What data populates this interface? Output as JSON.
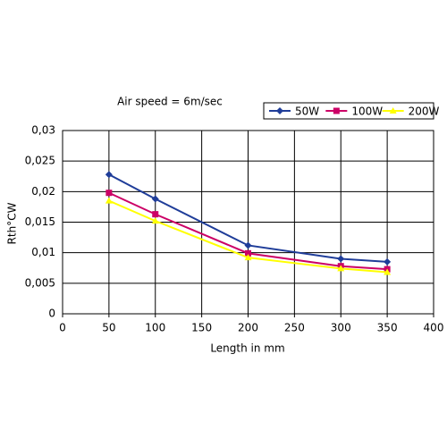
{
  "chart_data": {
    "type": "line",
    "title": "Air speed = 6m/sec",
    "x_label": "Length in mm",
    "y_label": "Rth°CW",
    "x": [
      50,
      100,
      200,
      300,
      350
    ],
    "series": [
      {
        "name": "50W",
        "color": "#1f3d99",
        "marker": "diamond",
        "values": [
          0.0228,
          0.0188,
          0.0112,
          0.009,
          0.0085
        ]
      },
      {
        "name": "100W",
        "color": "#cc0066",
        "marker": "square",
        "values": [
          0.0198,
          0.0163,
          0.0099,
          0.0078,
          0.0073
        ]
      },
      {
        "name": "200W",
        "color": "#ffff00",
        "marker": "triangle",
        "values": [
          0.0185,
          0.0152,
          0.0092,
          0.0074,
          0.0068
        ]
      }
    ],
    "xlim": [
      0,
      400
    ],
    "xticks": [
      0,
      50,
      100,
      150,
      200,
      250,
      300,
      350,
      400
    ],
    "ylim": [
      0,
      0.03
    ],
    "yticks": [
      0,
      {
        "value": 0.005,
        "label": "0,005"
      },
      {
        "value": 0.01,
        "label": "0,01"
      },
      {
        "value": 0.015,
        "label": "0,015"
      },
      {
        "value": 0.02,
        "label": "0,02"
      },
      {
        "value": 0.025,
        "label": "0,025"
      },
      {
        "value": 0.03,
        "label": "0,03"
      }
    ],
    "grid": true,
    "legend": "top-right"
  }
}
